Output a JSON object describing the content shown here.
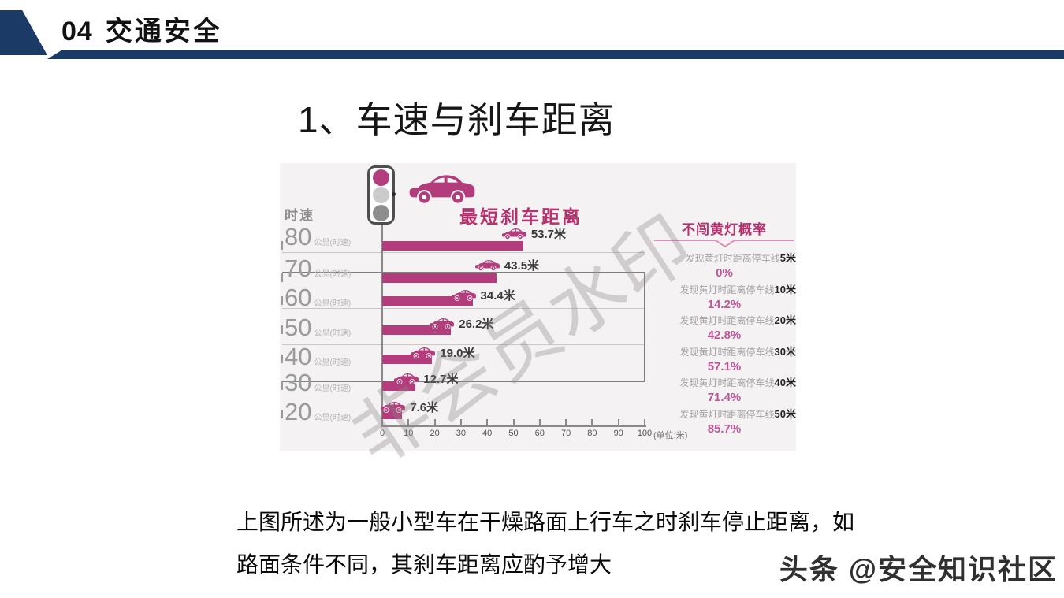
{
  "header": {
    "number": "04",
    "title": "交通安全"
  },
  "slide_title": "1、车速与刹车距离",
  "chart": {
    "speed_axis_label": "时速",
    "main_title": "最短刹车距离",
    "rows": [
      {
        "speed": "80",
        "unit": "公里(时速)",
        "value": 53.7,
        "label": "53.7米"
      },
      {
        "speed": "70",
        "unit": "公里(时速)",
        "value": 43.5,
        "label": "43.5米"
      },
      {
        "speed": "60",
        "unit": "公里(时速)",
        "value": 34.4,
        "label": "34.4米"
      },
      {
        "speed": "50",
        "unit": "公里(时速)",
        "value": 26.2,
        "label": "26.2米"
      },
      {
        "speed": "40",
        "unit": "公里(时速)",
        "value": 19.0,
        "label": "19.0米"
      },
      {
        "speed": "30",
        "unit": "公里(时速)",
        "value": 12.7,
        "label": "12.7米"
      },
      {
        "speed": "20",
        "unit": "公里(时速)",
        "value": 7.6,
        "label": "7.6米"
      }
    ],
    "x_ticks": [
      "0",
      "10",
      "20",
      "30",
      "40",
      "50",
      "60",
      "70",
      "80",
      "90",
      "100"
    ],
    "x_unit_note": "(单位:米)",
    "right_panel": {
      "title": "不闯黄灯概率",
      "items": [
        {
          "prefix": "发现黄灯时距离停车线",
          "distance": "5米",
          "probability": "0%"
        },
        {
          "prefix": "发现黄灯时距离停车线",
          "distance": "10米",
          "probability": "14.2%"
        },
        {
          "prefix": "发现黄灯时距离停车线",
          "distance": "20米",
          "probability": "42.8%"
        },
        {
          "prefix": "发现黄灯时距离停车线",
          "distance": "30米",
          "probability": "57.1%"
        },
        {
          "prefix": "发现黄灯时距离停车线",
          "distance": "40米",
          "probability": "71.4%"
        },
        {
          "prefix": "发现黄灯时距离停车线",
          "distance": "50米",
          "probability": "85.7%"
        }
      ]
    }
  },
  "footer": {
    "line1": "上图所述为一般小型车在干燥路面上行车之时刹车停止距离，如",
    "line2": "路面条件不同，其刹车距离应酌予增大"
  },
  "watermarks": {
    "diagonal": "非会员水印",
    "brand": "头条 @安全知识社区"
  },
  "colors": {
    "navy": "#1c3a66",
    "bar_magenta": "#b23c7c",
    "title_pink": "#b5316f",
    "probability_pink": "#bf5498",
    "chart_background": "#f4f2f2"
  },
  "chart_data": [
    {
      "type": "bar",
      "orientation": "horizontal",
      "title": "最短刹车距离",
      "categories": [
        "80公里(时速)",
        "70公里(时速)",
        "60公里(时速)",
        "50公里(时速)",
        "40公里(时速)",
        "30公里(时速)",
        "20公里(时速)"
      ],
      "values": [
        53.7,
        43.5,
        34.4,
        26.2,
        19.0,
        12.7,
        7.6
      ],
      "value_unit": "米",
      "xlabel": "单位:米",
      "ylabel": "时速",
      "xlim": [
        0,
        100
      ],
      "x_tick_interval": 10,
      "grid": true,
      "bar_color": "#b23c7c"
    },
    {
      "type": "table",
      "title": "不闯黄灯概率",
      "columns": [
        "发现黄灯时距离停车线(米)",
        "不闯黄灯概率"
      ],
      "rows": [
        [
          5,
          "0%"
        ],
        [
          10,
          "14.2%"
        ],
        [
          20,
          "42.8%"
        ],
        [
          30,
          "57.1%"
        ],
        [
          40,
          "71.4%"
        ],
        [
          50,
          "85.7%"
        ]
      ]
    }
  ]
}
